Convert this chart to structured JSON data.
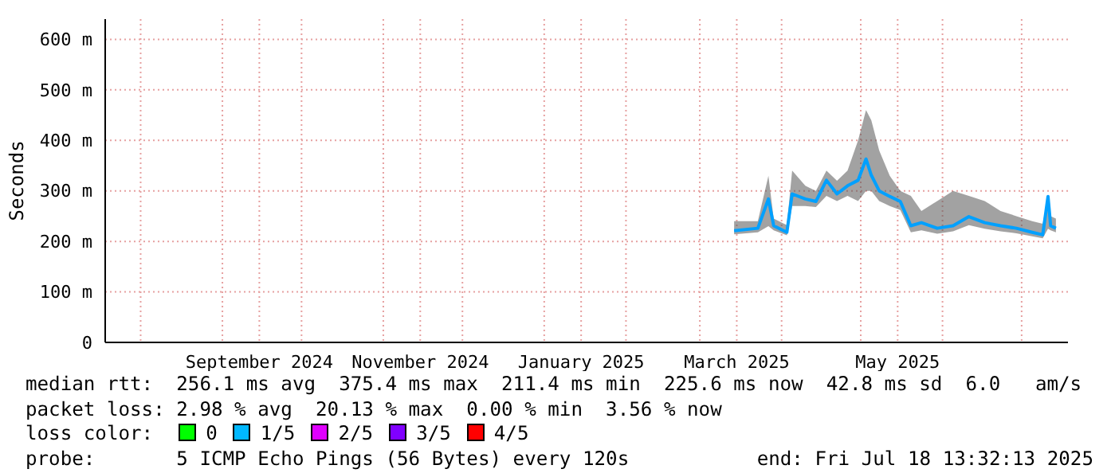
{
  "chart_data": {
    "type": "line",
    "ylabel": "Seconds",
    "xlim": [
      "2024-07-18T13:32",
      "2025-07-18T13:32"
    ],
    "xticks": [
      {
        "value": "2024-08-01",
        "label": null
      },
      {
        "value": "2024-09-01",
        "label": null
      },
      {
        "value": "2024-09-15",
        "label": "September 2024"
      },
      {
        "value": "2024-10-01",
        "label": null
      },
      {
        "value": "2024-11-01",
        "label": null
      },
      {
        "value": "2024-11-15",
        "label": "November 2024"
      },
      {
        "value": "2024-12-01",
        "label": null
      },
      {
        "value": "2025-01-01",
        "label": null
      },
      {
        "value": "2025-01-15",
        "label": "January 2025"
      },
      {
        "value": "2025-02-01",
        "label": null
      },
      {
        "value": "2025-03-01",
        "label": null
      },
      {
        "value": "2025-03-15",
        "label": "March 2025"
      },
      {
        "value": "2025-04-01",
        "label": null
      },
      {
        "value": "2025-05-01",
        "label": null
      },
      {
        "value": "2025-05-15",
        "label": "May 2025"
      },
      {
        "value": "2025-06-01",
        "label": null
      },
      {
        "value": "2025-07-01",
        "label": null
      }
    ],
    "ylim": [
      0,
      640
    ],
    "yticks": [
      {
        "value": 0,
        "label": "0"
      },
      {
        "value": 100,
        "label": "100 m"
      },
      {
        "value": 200,
        "label": "200 m"
      },
      {
        "value": 300,
        "label": "300 m"
      },
      {
        "value": 400,
        "label": "400 m"
      },
      {
        "value": 500,
        "label": "500 m"
      },
      {
        "value": 600,
        "label": "600 m"
      }
    ],
    "x": [
      "2025-03-14",
      "2025-03-23",
      "2025-03-27",
      "2025-03-29",
      "2025-04-03",
      "2025-04-05",
      "2025-04-10",
      "2025-04-14",
      "2025-04-18",
      "2025-04-22",
      "2025-04-26",
      "2025-04-30",
      "2025-05-03",
      "2025-05-05",
      "2025-05-08",
      "2025-05-12",
      "2025-05-16",
      "2025-05-20",
      "2025-05-24",
      "2025-05-30",
      "2025-06-05",
      "2025-06-11",
      "2025-06-17",
      "2025-06-23",
      "2025-06-29",
      "2025-07-05",
      "2025-07-09",
      "2025-07-11",
      "2025-07-12",
      "2025-07-14"
    ],
    "series": [
      {
        "color": "#00a0ff",
        "values": [
          221,
          226,
          284,
          231,
          218,
          294,
          284,
          279,
          321,
          294,
          310,
          321,
          363,
          331,
          300,
          289,
          279,
          231,
          237,
          226,
          231,
          249,
          237,
          231,
          226,
          218,
          213,
          289,
          231,
          226
        ],
        "lower": [
          214,
          218,
          230,
          222,
          212,
          270,
          270,
          268,
          290,
          280,
          290,
          280,
          300,
          300,
          280,
          270,
          262,
          218,
          222,
          215,
          220,
          232,
          225,
          220,
          216,
          210,
          206,
          225,
          222,
          218
        ],
        "upper": [
          240,
          240,
          330,
          245,
          232,
          340,
          310,
          300,
          340,
          320,
          340,
          400,
          460,
          440,
          380,
          330,
          300,
          290,
          260,
          280,
          300,
          290,
          280,
          260,
          250,
          240,
          235,
          290,
          250,
          245
        ]
      }
    ],
    "grid": true,
    "marker": "none",
    "line_style": "solid",
    "annotations": [
      "median rtt:  256.1 ms avg  375.4 ms max  211.4 ms min  225.6 ms now  42.8 ms sd  6.0   am/s",
      "packet loss: 2.98 % avg  20.13 % max  0.00 % min  3.56 % now",
      "loss color:",
      "0",
      "1/5",
      "2/5",
      "3/5",
      "4/5",
      "probe:       5 ICMP Echo Pings (56 Bytes) every 120s",
      "end: Fri Jul 18 13:32:13 2025"
    ]
  }
}
